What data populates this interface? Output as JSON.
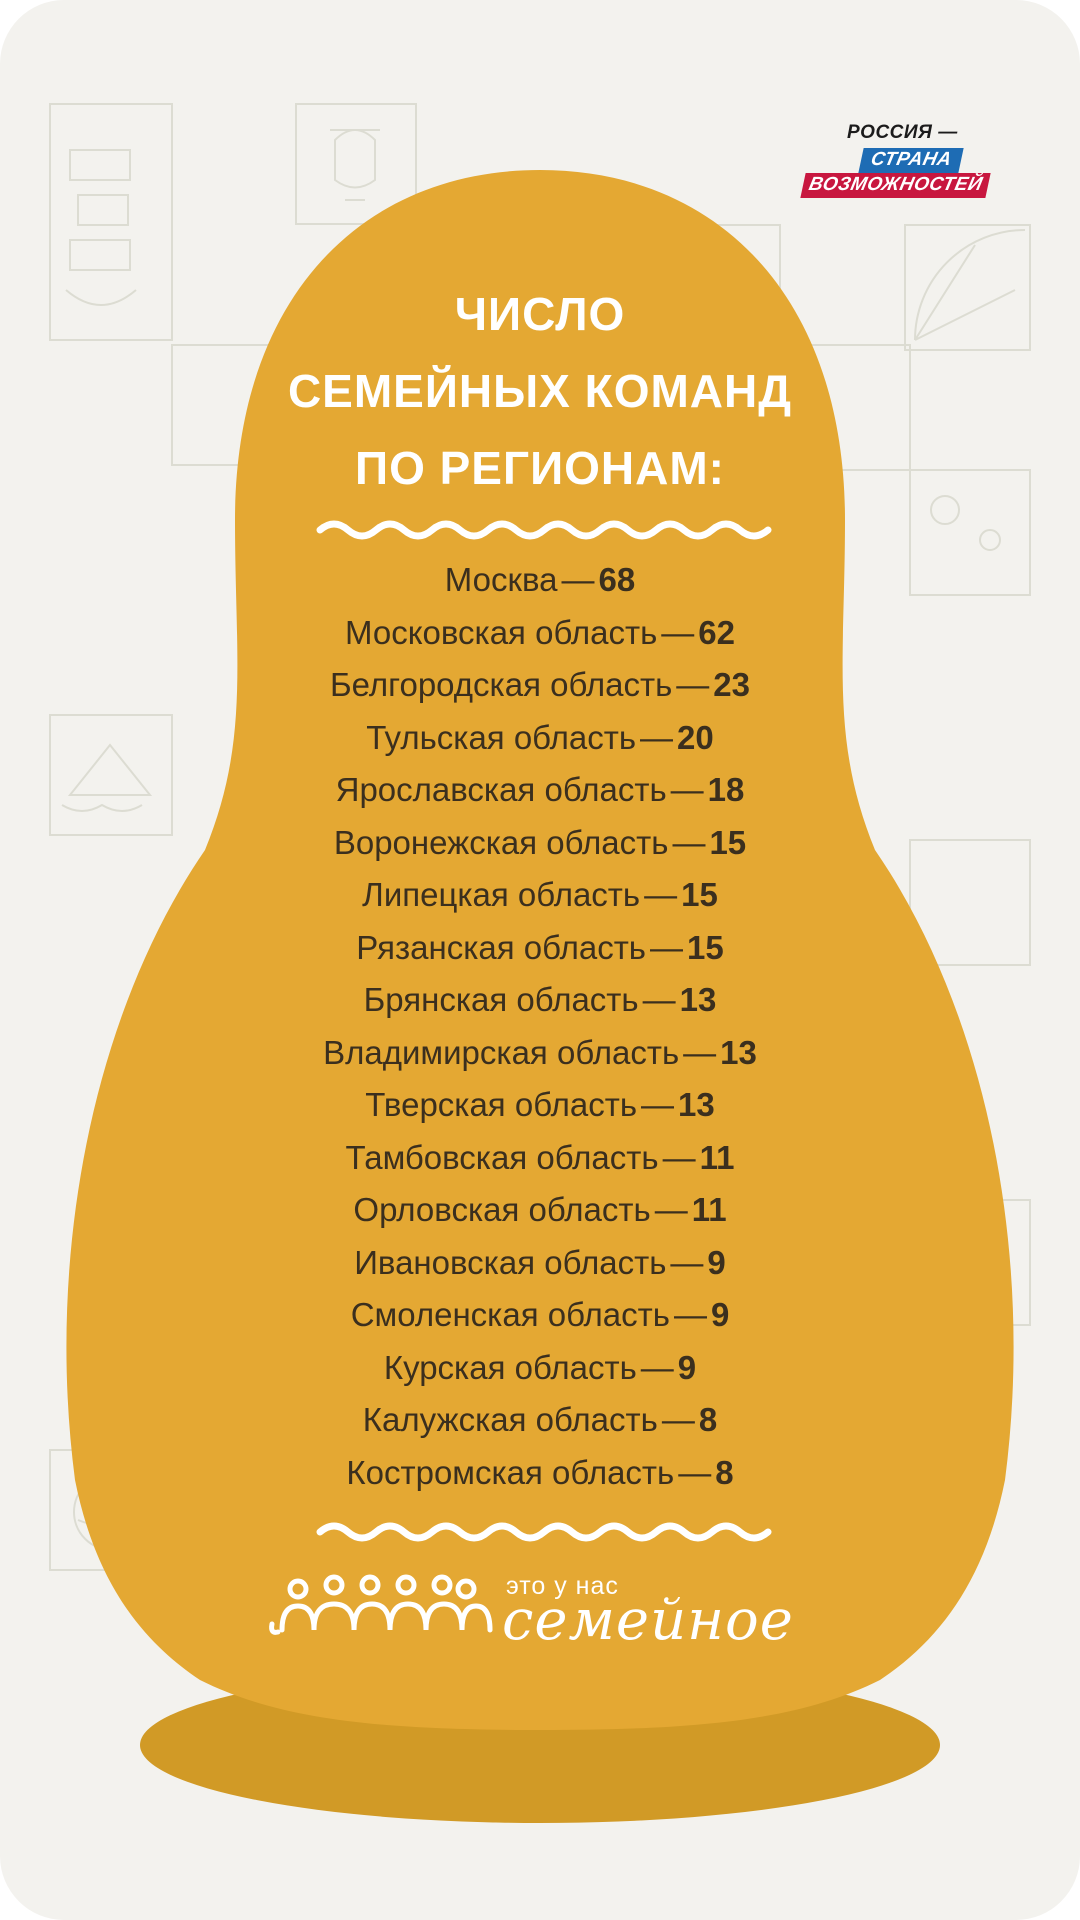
{
  "logo": {
    "line1": "РОССИЯ —",
    "line2": "СТРАНА",
    "line3": "ВОЗМОЖНОСТЕЙ"
  },
  "title": {
    "line1": "ЧИСЛО",
    "line2": "СЕМЕЙНЫХ КОМАНД",
    "line3": "ПО РЕГИОНАМ:"
  },
  "dash": "—",
  "regions": [
    {
      "name": "Москва",
      "count": "68"
    },
    {
      "name": "Московская область",
      "count": "62"
    },
    {
      "name": "Белгородская область",
      "count": "23"
    },
    {
      "name": "Тульская область",
      "count": "20"
    },
    {
      "name": "Ярославская область",
      "count": "18"
    },
    {
      "name": "Воронежская область",
      "count": "15"
    },
    {
      "name": "Липецкая область",
      "count": "15"
    },
    {
      "name": "Рязанская область",
      "count": "15"
    },
    {
      "name": "Брянская область",
      "count": "13"
    },
    {
      "name": "Владимирская область",
      "count": "13"
    },
    {
      "name": "Тверская область",
      "count": "13"
    },
    {
      "name": "Тамбовская область",
      "count": "11"
    },
    {
      "name": "Орловская область",
      "count": "11"
    },
    {
      "name": "Ивановская область",
      "count": "9"
    },
    {
      "name": "Смоленская область",
      "count": "9"
    },
    {
      "name": "Курская область",
      "count": "9"
    },
    {
      "name": "Калужская область",
      "count": "8"
    },
    {
      "name": "Костромская область",
      "count": "8"
    }
  ],
  "brand": {
    "small": "это у нас",
    "big": "семейное"
  },
  "colors": {
    "background": "#f3f2ee",
    "body": "#e4a833",
    "base": "#d19a26",
    "text": "#3b2f1e",
    "pattern": "#dcdcd2"
  }
}
